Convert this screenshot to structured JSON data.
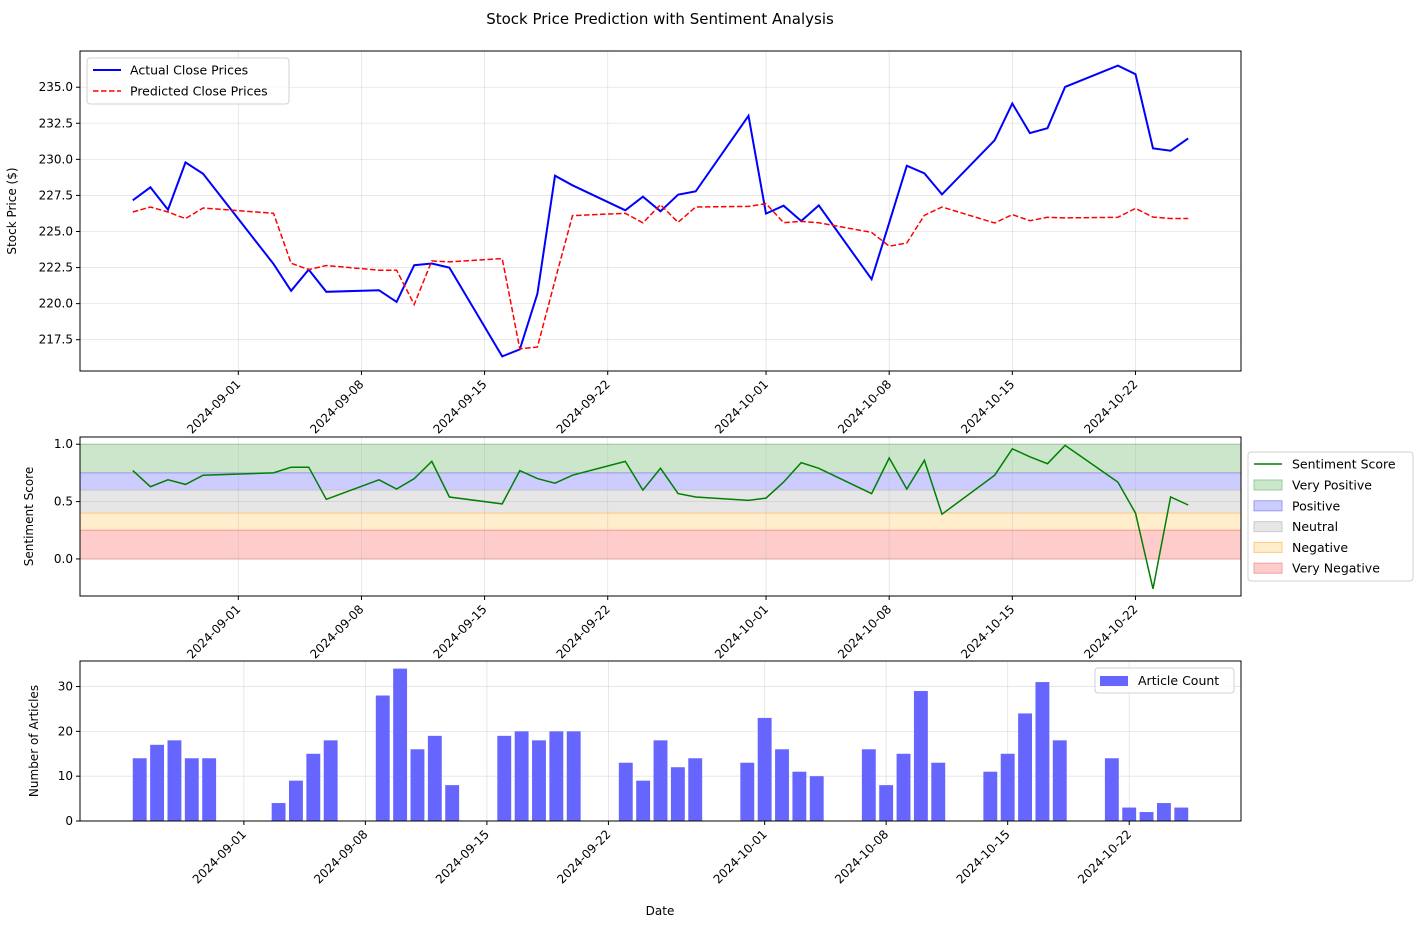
{
  "figure": {
    "title": "Stock Price Prediction with Sentiment Analysis"
  },
  "chart_data": {
    "type": "line",
    "x": [
      "2024-08-26",
      "2024-08-27",
      "2024-08-28",
      "2024-08-29",
      "2024-08-30",
      "2024-09-03",
      "2024-09-04",
      "2024-09-05",
      "2024-09-06",
      "2024-09-09",
      "2024-09-10",
      "2024-09-11",
      "2024-09-12",
      "2024-09-13",
      "2024-09-16",
      "2024-09-17",
      "2024-09-18",
      "2024-09-19",
      "2024-09-20",
      "2024-09-23",
      "2024-09-24",
      "2024-09-25",
      "2024-09-26",
      "2024-09-27",
      "2024-09-30",
      "2024-10-01",
      "2024-10-02",
      "2024-10-03",
      "2024-10-04",
      "2024-10-07",
      "2024-10-08",
      "2024-10-09",
      "2024-10-10",
      "2024-10-11",
      "2024-10-14",
      "2024-10-15",
      "2024-10-16",
      "2024-10-17",
      "2024-10-18",
      "2024-10-21",
      "2024-10-22",
      "2024-10-23",
      "2024-10-24",
      "2024-10-25"
    ],
    "xticks": [
      "2024-09-01",
      "2024-09-08",
      "2024-09-15",
      "2024-09-22",
      "2024-10-01",
      "2024-10-08",
      "2024-10-15",
      "2024-10-22"
    ],
    "grid": true,
    "panels": [
      {
        "type": "line",
        "ylabel": "Stock Price ($)",
        "xlabel": "",
        "ylim": [
          215.33,
          237.51
        ],
        "yticks": [
          "217.5",
          "220.0",
          "222.5",
          "225.0",
          "227.5",
          "230.0",
          "232.5",
          "235.0"
        ],
        "legend": "upper-left",
        "series": [
          {
            "name": "Actual Close Prices",
            "color": "#0000ff",
            "style": "solid",
            "values": [
              227.16,
              228.06,
              226.51,
              229.79,
              229.0,
              222.75,
              220.89,
              222.36,
              220.82,
              220.93,
              220.12,
              222.66,
              222.78,
              222.5,
              216.34,
              216.83,
              220.68,
              228.87,
              228.2,
              226.47,
              227.41,
              226.4,
              227.55,
              227.78,
              233.02,
              226.24,
              226.79,
              225.73,
              226.81,
              221.69,
              225.6,
              229.56,
              229.03,
              227.57,
              231.33,
              233.87,
              231.82,
              232.16,
              235.02,
              236.5,
              235.9,
              230.76,
              230.6,
              231.45
            ]
          },
          {
            "name": "Predicted Close Prices",
            "color": "#ff0000",
            "style": "dashed",
            "values": [
              226.35,
              226.7,
              226.35,
              225.89,
              226.63,
              226.26,
              222.8,
              222.36,
              222.64,
              222.32,
              222.32,
              219.94,
              222.96,
              222.89,
              223.12,
              216.87,
              216.99,
              221.6,
              226.1,
              226.26,
              225.6,
              226.86,
              225.64,
              226.7,
              226.74,
              226.93,
              225.61,
              225.7,
              225.6,
              224.94,
              223.98,
              224.2,
              226.12,
              226.7,
              225.59,
              226.17,
              225.75,
              225.98,
              225.94,
              225.98,
              226.6,
              226.0,
              225.9,
              225.9
            ]
          }
        ]
      },
      {
        "type": "line",
        "ylabel": "Sentiment Score",
        "xlabel": "",
        "ylim": [
          -0.323,
          1.063
        ],
        "yticks": [
          "0.0",
          "0.5",
          "1.0"
        ],
        "legend": "outside-right",
        "series": [
          {
            "name": "Sentiment Score",
            "color": "#008000",
            "style": "solid",
            "values": [
              0.77,
              0.63,
              0.69,
              0.65,
              0.73,
              0.75,
              0.8,
              0.8,
              0.52,
              0.69,
              0.61,
              0.7,
              0.85,
              0.54,
              0.48,
              0.77,
              0.7,
              0.66,
              0.73,
              0.85,
              0.6,
              0.79,
              0.57,
              0.54,
              0.51,
              0.53,
              0.67,
              0.84,
              0.79,
              0.57,
              0.88,
              0.61,
              0.86,
              0.39,
              0.73,
              0.96,
              0.89,
              0.83,
              0.99,
              0.67,
              0.4,
              -0.26,
              0.54,
              0.47
            ]
          }
        ],
        "bands": [
          {
            "name": "Very Positive",
            "range": [
              0.75,
              1.0
            ],
            "color": "#008000"
          },
          {
            "name": "Positive",
            "range": [
              0.6,
              0.75
            ],
            "color": "#0000ff"
          },
          {
            "name": "Neutral",
            "range": [
              0.4,
              0.6
            ],
            "color": "#808080"
          },
          {
            "name": "Negative",
            "range": [
              0.25,
              0.4
            ],
            "color": "#ffa500"
          },
          {
            "name": "Very Negative",
            "range": [
              0.0,
              0.25
            ],
            "color": "#ff0000"
          }
        ]
      },
      {
        "type": "bar",
        "ylabel": "Number of Articles",
        "xlabel": "Date",
        "ylim": [
          0,
          35.7
        ],
        "yticks": [
          "0",
          "10",
          "20",
          "30"
        ],
        "legend": "upper-right",
        "series": [
          {
            "name": "Article Count",
            "color": "#6666ff",
            "values": [
              14,
              17,
              18,
              14,
              14,
              4,
              9,
              15,
              18,
              28,
              34,
              16,
              19,
              8,
              19,
              20,
              18,
              20,
              20,
              13,
              9,
              18,
              12,
              14,
              13,
              23,
              16,
              11,
              10,
              16,
              8,
              15,
              29,
              13,
              11,
              15,
              24,
              31,
              18,
              14,
              3,
              2,
              4,
              3
            ]
          }
        ]
      }
    ]
  }
}
